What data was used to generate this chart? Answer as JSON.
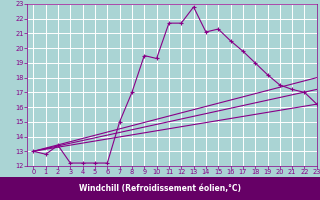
{
  "title": "",
  "xlabel": "Windchill (Refroidissement éolien,°C)",
  "xlim": [
    -0.5,
    23
  ],
  "ylim": [
    12,
    23
  ],
  "xticks": [
    0,
    1,
    2,
    3,
    4,
    5,
    6,
    7,
    8,
    9,
    10,
    11,
    12,
    13,
    14,
    15,
    16,
    17,
    18,
    19,
    20,
    21,
    22,
    23
  ],
  "yticks": [
    12,
    13,
    14,
    15,
    16,
    17,
    18,
    19,
    20,
    21,
    22,
    23
  ],
  "background_color": "#aad4d4",
  "grid_color": "#ffffff",
  "line_color": "#880088",
  "line1_x": [
    0,
    1,
    2,
    3,
    4,
    5,
    6,
    7,
    8,
    9,
    10,
    11,
    12,
    13,
    14,
    15,
    16,
    17,
    18,
    19,
    20,
    21,
    22,
    23
  ],
  "line1_y": [
    13.0,
    12.8,
    13.4,
    12.2,
    12.2,
    12.2,
    12.2,
    15.0,
    17.0,
    19.5,
    19.3,
    21.7,
    21.7,
    22.8,
    21.1,
    21.3,
    20.5,
    19.8,
    19.0,
    18.2,
    17.5,
    17.2,
    17.0,
    16.2
  ],
  "line2_x": [
    0,
    23
  ],
  "line2_y": [
    13.0,
    18.0
  ],
  "line3_x": [
    0,
    23
  ],
  "line3_y": [
    13.0,
    17.2
  ],
  "line4_x": [
    0,
    23
  ],
  "line4_y": [
    13.0,
    16.2
  ],
  "font_color": "#880088",
  "xlabel_bg": "#660066",
  "tick_fontsize": 4.8,
  "label_fontsize": 5.5
}
